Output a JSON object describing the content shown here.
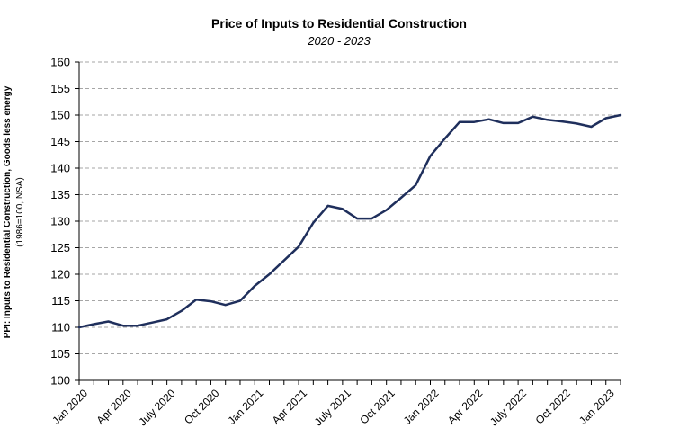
{
  "chart_data": {
    "type": "line",
    "title": "Price of Inputs to Residential Construction",
    "subtitle": "2020 - 2023",
    "ylabel": "PPI: Inputs to Residential Construction, Goods less energy",
    "ylabel_sub": "(1986=100, NSA)",
    "xlabel": "",
    "ylim": [
      100,
      160
    ],
    "yticks": [
      100,
      105,
      110,
      115,
      120,
      125,
      130,
      135,
      140,
      145,
      150,
      155,
      160
    ],
    "xticks": [
      "Jan 2020",
      "Apr 2020",
      "July 2020",
      "Oct 2020",
      "Jan 2021",
      "Apr 2021",
      "July 2021",
      "Oct 2021",
      "Jan 2022",
      "Apr 2022",
      "July 2022",
      "Oct 2022",
      "Jan 2023"
    ],
    "grid": true,
    "line_color": "#1f2f5c",
    "x": [
      "Jan 2020",
      "Feb 2020",
      "Mar 2020",
      "Apr 2020",
      "May 2020",
      "Jun 2020",
      "Jul 2020",
      "Aug 2020",
      "Sep 2020",
      "Oct 2020",
      "Nov 2020",
      "Dec 2020",
      "Jan 2021",
      "Feb 2021",
      "Mar 2021",
      "Apr 2021",
      "May 2021",
      "Jun 2021",
      "Jul 2021",
      "Aug 2021",
      "Sep 2021",
      "Oct 2021",
      "Nov 2021",
      "Dec 2021",
      "Jan 2022",
      "Feb 2022",
      "Mar 2022",
      "Apr 2022",
      "May 2022",
      "Jun 2022",
      "Jul 2022",
      "Aug 2022",
      "Sep 2022",
      "Oct 2022",
      "Nov 2022",
      "Dec 2022",
      "Jan 2023",
      "Feb 2023"
    ],
    "values": [
      110.0,
      110.6,
      111.1,
      110.3,
      110.3,
      110.9,
      111.5,
      113.1,
      115.2,
      114.9,
      114.2,
      115.0,
      117.8,
      120.0,
      122.6,
      125.2,
      129.7,
      132.9,
      132.3,
      130.5,
      130.5,
      132.1,
      134.4,
      136.8,
      142.3,
      145.6,
      148.7,
      148.7,
      149.2,
      148.5,
      148.5,
      149.7,
      149.1,
      148.8,
      148.4,
      147.8,
      149.4,
      150.0
    ]
  }
}
